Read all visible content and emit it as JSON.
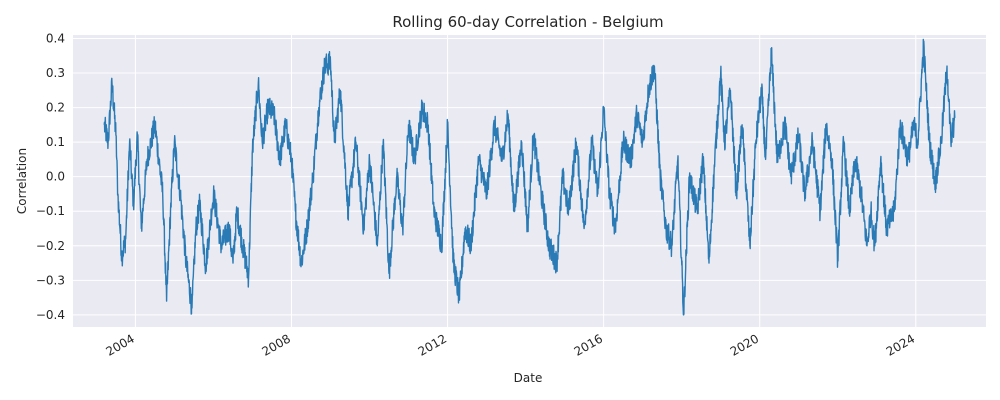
{
  "chart_data": {
    "type": "line",
    "title": "Rolling 60-day Correlation - Belgium",
    "xlabel": "Date",
    "ylabel": "Correlation",
    "x_ticks": [
      "2004",
      "2008",
      "2012",
      "2016",
      "2020",
      "2024"
    ],
    "y_ticks": [
      "0.4",
      "0.3",
      "0.2",
      "0.1",
      "0.0",
      "−0.1",
      "−0.2",
      "−0.3",
      "−0.4"
    ],
    "y_tick_values": [
      0.4,
      0.3,
      0.2,
      0.1,
      0.0,
      -0.1,
      -0.2,
      -0.3,
      -0.4
    ],
    "x_range": [
      2002.4,
      2025.8
    ],
    "y_range": [
      -0.435,
      0.41
    ],
    "grid": true,
    "legend": "none",
    "colors": {
      "line": "#2a7ab5",
      "plot_bg": "#eaeaf2",
      "grid": "#ffffff"
    },
    "series": [
      {
        "x": [
          2003.2,
          2003.3,
          2003.4,
          2003.5,
          2003.55,
          2003.65,
          2003.75,
          2003.85,
          2003.95,
          2004.05,
          2004.15,
          2004.3,
          2004.5,
          2004.7,
          2004.8,
          2004.9,
          2005.0,
          2005.15,
          2005.3,
          2005.45,
          2005.55,
          2005.65,
          2005.8,
          2006.0,
          2006.2,
          2006.4,
          2006.5,
          2006.6,
          2006.75,
          2006.9,
          2007.0,
          2007.15,
          2007.25,
          2007.4,
          2007.55,
          2007.7,
          2007.85,
          2008.0,
          2008.1,
          2008.25,
          2008.4,
          2008.55,
          2008.7,
          2008.85,
          2009.0,
          2009.1,
          2009.25,
          2009.45,
          2009.65,
          2009.85,
          2010.0,
          2010.2,
          2010.35,
          2010.5,
          2010.7,
          2010.85,
          2011.0,
          2011.15,
          2011.35,
          2011.5,
          2011.65,
          2011.85,
          2012.0,
          2012.15,
          2012.3,
          2012.45,
          2012.6,
          2012.8,
          2013.0,
          2013.2,
          2013.4,
          2013.55,
          2013.7,
          2013.9,
          2014.05,
          2014.2,
          2014.4,
          2014.6,
          2014.8,
          2014.95,
          2015.1,
          2015.3,
          2015.5,
          2015.7,
          2015.85,
          2016.0,
          2016.15,
          2016.3,
          2016.5,
          2016.7,
          2016.85,
          2017.0,
          2017.15,
          2017.3,
          2017.45,
          2017.6,
          2017.75,
          2017.9,
          2018.05,
          2018.2,
          2018.4,
          2018.55,
          2018.7,
          2018.85,
          2019.0,
          2019.1,
          2019.25,
          2019.4,
          2019.55,
          2019.75,
          2019.9,
          2020.05,
          2020.15,
          2020.3,
          2020.45,
          2020.65,
          2020.8,
          2021.0,
          2021.15,
          2021.35,
          2021.55,
          2021.7,
          2021.85,
          2022.0,
          2022.15,
          2022.3,
          2022.45,
          2022.6,
          2022.75,
          2022.85,
          2022.95,
          2023.1,
          2023.25,
          2023.45,
          2023.6,
          2023.8,
          2023.95,
          2024.05,
          2024.2,
          2024.35,
          2024.5,
          2024.65,
          2024.8,
          2024.9,
          2025.0
        ],
        "y": [
          0.15,
          0.1,
          0.27,
          0.12,
          -0.05,
          -0.23,
          -0.18,
          0.1,
          -0.08,
          0.12,
          -0.15,
          0.05,
          0.15,
          -0.05,
          -0.36,
          -0.1,
          0.1,
          -0.05,
          -0.25,
          -0.38,
          -0.15,
          -0.08,
          -0.26,
          -0.05,
          -0.2,
          -0.15,
          -0.25,
          -0.1,
          -0.2,
          -0.29,
          0.08,
          0.27,
          0.1,
          0.2,
          0.18,
          0.05,
          0.15,
          0.05,
          -0.1,
          -0.25,
          -0.15,
          0.0,
          0.2,
          0.32,
          0.33,
          0.1,
          0.25,
          -0.1,
          0.1,
          -0.15,
          0.05,
          -0.2,
          0.1,
          -0.28,
          0.0,
          -0.15,
          0.15,
          0.05,
          0.2,
          0.15,
          -0.1,
          -0.2,
          0.15,
          -0.25,
          -0.35,
          -0.15,
          -0.2,
          0.05,
          -0.05,
          0.15,
          0.05,
          0.18,
          -0.1,
          0.1,
          -0.15,
          0.12,
          -0.05,
          -0.2,
          -0.25,
          0.0,
          -0.1,
          0.1,
          -0.15,
          0.1,
          -0.05,
          0.2,
          -0.05,
          -0.15,
          0.1,
          0.05,
          0.18,
          0.1,
          0.25,
          0.32,
          0.0,
          -0.15,
          -0.2,
          0.05,
          -0.4,
          0.0,
          -0.1,
          0.05,
          -0.25,
          0.05,
          0.3,
          0.1,
          0.25,
          -0.05,
          0.15,
          -0.2,
          0.1,
          0.25,
          0.05,
          0.36,
          0.05,
          0.15,
          0.0,
          0.12,
          -0.05,
          0.1,
          -0.1,
          0.15,
          0.05,
          -0.24,
          0.1,
          -0.1,
          0.05,
          -0.05,
          -0.2,
          -0.1,
          -0.2,
          0.05,
          -0.15,
          -0.1,
          0.15,
          0.05,
          0.15,
          0.1,
          0.38,
          0.1,
          -0.02,
          0.1,
          0.32,
          0.1,
          0.17
        ]
      }
    ]
  }
}
